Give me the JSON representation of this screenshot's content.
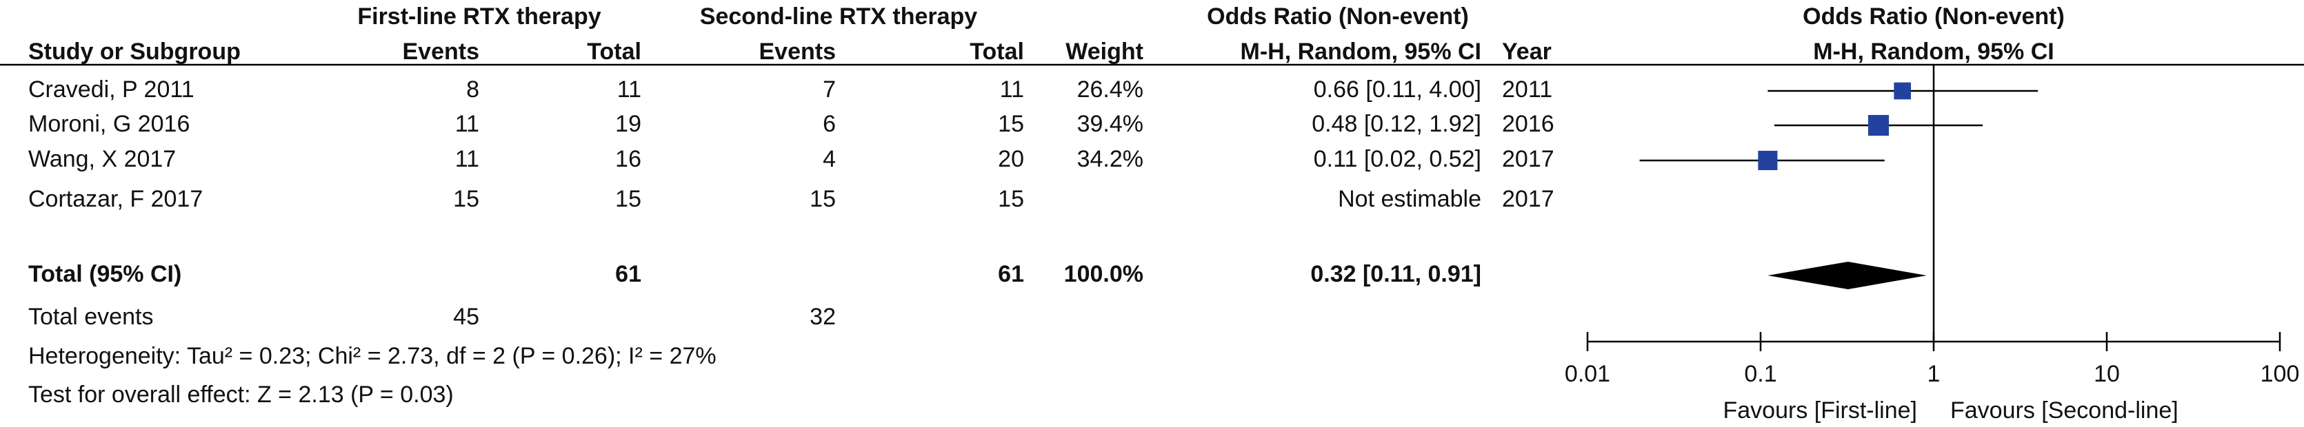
{
  "chart_data": {
    "type": "forest",
    "headers": {
      "group1": "First-line RTX therapy",
      "group2": "Second-line RTX therapy",
      "effect": "Odds Ratio (Non-event)",
      "effect_method": "M-H, Random, 95% CI",
      "study": "Study or Subgroup",
      "events1": "Events",
      "total1": "Total",
      "events2": "Events",
      "total2": "Total",
      "weight": "Weight",
      "year": "Year",
      "plot_title": "Odds Ratio (Non-event)",
      "plot_method": "M-H, Random, 95% CI"
    },
    "studies": [
      {
        "name": "Cravedi, P 2011",
        "events1": 8,
        "total1": 11,
        "events2": 7,
        "total2": 11,
        "weight": 26.4,
        "weight_label": "26.4%",
        "or": 0.66,
        "ci": [
          0.11,
          4.0
        ],
        "or_label": "0.66 [0.11, 4.00]",
        "year": 2011
      },
      {
        "name": "Moroni, G 2016",
        "events1": 11,
        "total1": 19,
        "events2": 6,
        "total2": 15,
        "weight": 39.4,
        "weight_label": "39.4%",
        "or": 0.48,
        "ci": [
          0.12,
          1.92
        ],
        "or_label": "0.48 [0.12, 1.92]",
        "year": 2016
      },
      {
        "name": "Wang, X 2017",
        "events1": 11,
        "total1": 16,
        "events2": 4,
        "total2": 20,
        "weight": 34.2,
        "weight_label": "34.2%",
        "or": 0.11,
        "ci": [
          0.02,
          0.52
        ],
        "or_label": "0.11 [0.02, 0.52]",
        "year": 2017
      },
      {
        "name": "Cortazar, F 2017",
        "events1": 15,
        "total1": 15,
        "events2": 15,
        "total2": 15,
        "weight": null,
        "weight_label": null,
        "or": null,
        "ci": null,
        "or_label": "Not estimable",
        "year": 2017
      }
    ],
    "total": {
      "name": "Total (95% CI)",
      "total1": 61,
      "total2": 61,
      "weight": 100,
      "weight_label": "100.0%",
      "or": 0.32,
      "ci": [
        0.11,
        0.91
      ],
      "or_label": "0.32 [0.11, 0.91]"
    },
    "total_events": {
      "name": "Total events",
      "events1": 45,
      "events2": 32
    },
    "heterogeneity": "Heterogeneity: Tau² = 0.23; Chi² = 2.73, df = 2 (P = 0.26); I² = 27%",
    "overall_effect": "Test for overall effect: Z = 2.13 (P = 0.03)",
    "xscale": "log",
    "xlim": [
      0.01,
      100
    ],
    "xticks": [
      0.01,
      0.1,
      1,
      10,
      100
    ],
    "reference": 1,
    "favours_left": "Favours [First-line]",
    "favours_right": "Favours [Second-line]",
    "color": "#2342a0"
  }
}
